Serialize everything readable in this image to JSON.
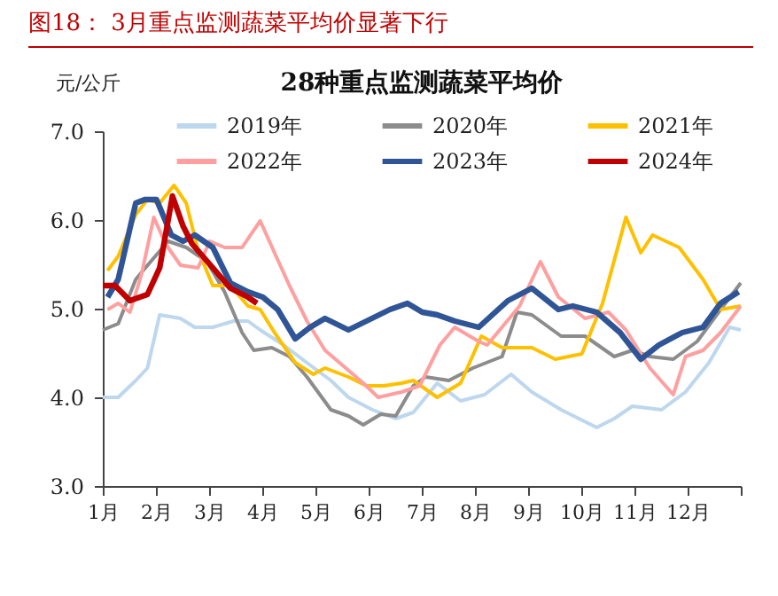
{
  "chart_data": {
    "type": "line",
    "title": "图18： 3月重点监测蔬菜平均价显著下行",
    "subtitle": "28种重点监测蔬菜平均价",
    "ylabel": "元/公斤",
    "xlim": [
      1,
      13
    ],
    "xticks": [
      {
        "value": 1,
        "label": "1月"
      },
      {
        "value": 2,
        "label": "2月"
      },
      {
        "value": 3,
        "label": "3月"
      },
      {
        "value": 4,
        "label": "4月"
      },
      {
        "value": 5,
        "label": "5月"
      },
      {
        "value": 6,
        "label": "6月"
      },
      {
        "value": 7,
        "label": "7月"
      },
      {
        "value": 8,
        "label": "8月"
      },
      {
        "value": 9,
        "label": "9月"
      },
      {
        "value": 10,
        "label": "10月"
      },
      {
        "value": 11,
        "label": "11月"
      },
      {
        "value": 12,
        "label": "12月"
      },
      {
        "value": 13,
        "label": null
      }
    ],
    "ylim": [
      3,
      7
    ],
    "yticks": [
      {
        "value": 3,
        "label": "3.0"
      },
      {
        "value": 4,
        "label": "4.0"
      },
      {
        "value": 5,
        "label": "5.0"
      },
      {
        "value": 6,
        "label": "6.0"
      },
      {
        "value": 7,
        "label": "7.0"
      }
    ],
    "grid": false,
    "legend": "top",
    "line_style": "solid",
    "series": [
      {
        "name": "2019年",
        "color": "#bdd7ee",
        "x": [
          1.0,
          1.29,
          1.62,
          1.84,
          2.07,
          2.46,
          2.73,
          3.07,
          3.46,
          3.73,
          3.96,
          4.4,
          4.84,
          5.29,
          5.62,
          6.07,
          6.51,
          6.84,
          7.29,
          7.73,
          8.18,
          8.68,
          9.07,
          9.62,
          10.29,
          10.62,
          10.96,
          11.51,
          11.96,
          12.4,
          12.79,
          13.0
        ],
        "values": [
          4.0,
          4.0,
          4.19,
          4.33,
          4.93,
          4.89,
          4.79,
          4.79,
          4.86,
          4.86,
          4.76,
          4.59,
          4.39,
          4.19,
          4.0,
          3.86,
          3.76,
          3.83,
          4.16,
          3.96,
          4.03,
          4.26,
          4.06,
          3.86,
          3.66,
          3.76,
          3.9,
          3.86,
          4.06,
          4.39,
          4.79,
          4.76
        ]
      },
      {
        "name": "2020年",
        "color": "#8c8c8c",
        "x": [
          1.0,
          1.29,
          1.62,
          1.9,
          2.23,
          2.57,
          2.96,
          3.29,
          3.62,
          3.84,
          4.18,
          4.51,
          4.84,
          5.29,
          5.62,
          5.9,
          6.23,
          6.51,
          6.84,
          7.07,
          7.51,
          7.96,
          8.51,
          8.79,
          9.07,
          9.62,
          10.07,
          10.62,
          10.96,
          11.29,
          11.73,
          12.18,
          12.62,
          13.0
        ],
        "values": [
          4.76,
          4.83,
          5.33,
          5.53,
          5.76,
          5.69,
          5.53,
          5.19,
          4.73,
          4.53,
          4.56,
          4.46,
          4.23,
          3.86,
          3.79,
          3.69,
          3.81,
          3.79,
          4.13,
          4.23,
          4.19,
          4.33,
          4.46,
          4.96,
          4.93,
          4.69,
          4.69,
          4.46,
          4.53,
          4.46,
          4.43,
          4.63,
          4.99,
          5.29
        ]
      },
      {
        "name": "2021年",
        "color": "#ffc000",
        "x": [
          1.09,
          1.29,
          1.62,
          1.84,
          2.07,
          2.34,
          2.57,
          2.79,
          3.07,
          3.4,
          3.73,
          3.96,
          4.23,
          4.62,
          4.96,
          5.18,
          5.62,
          5.96,
          6.29,
          6.62,
          6.84,
          7.29,
          7.73,
          8.12,
          8.51,
          9.07,
          9.51,
          10.01,
          10.4,
          10.84,
          11.12,
          11.34,
          11.84,
          12.29,
          12.62,
          13.0
        ],
        "values": [
          5.43,
          5.59,
          6.06,
          6.23,
          6.19,
          6.39,
          6.19,
          5.66,
          5.26,
          5.26,
          5.03,
          4.99,
          4.73,
          4.39,
          4.26,
          4.33,
          4.23,
          4.13,
          4.13,
          4.16,
          4.19,
          4.0,
          4.16,
          4.69,
          4.56,
          4.56,
          4.43,
          4.49,
          5.06,
          6.03,
          5.63,
          5.83,
          5.69,
          5.33,
          4.99,
          5.03
        ]
      },
      {
        "name": "2022年",
        "color": "#ff9f9f",
        "x": [
          1.09,
          1.29,
          1.51,
          1.73,
          1.96,
          2.18,
          2.46,
          2.79,
          3.01,
          3.29,
          3.62,
          3.96,
          4.23,
          4.51,
          4.84,
          5.18,
          5.57,
          5.9,
          6.18,
          6.62,
          6.96,
          7.34,
          7.62,
          8.07,
          8.23,
          8.84,
          9.23,
          9.57,
          10.07,
          10.51,
          10.84,
          11.29,
          11.73,
          11.96,
          12.29,
          12.62,
          13.0
        ],
        "values": [
          4.99,
          5.06,
          4.96,
          5.39,
          6.03,
          5.73,
          5.49,
          5.46,
          5.76,
          5.69,
          5.69,
          5.99,
          5.63,
          5.26,
          4.86,
          4.53,
          4.33,
          4.16,
          4.0,
          4.06,
          4.13,
          4.59,
          4.79,
          4.63,
          4.59,
          5.03,
          5.53,
          5.13,
          4.89,
          4.96,
          4.76,
          4.33,
          4.03,
          4.46,
          4.53,
          4.73,
          5.03
        ]
      },
      {
        "name": "2023年",
        "color": "#2f5597",
        "x": [
          1.09,
          1.29,
          1.62,
          1.79,
          2.01,
          2.29,
          2.51,
          2.73,
          3.07,
          3.4,
          3.73,
          4.01,
          4.29,
          4.62,
          4.9,
          5.18,
          5.62,
          5.96,
          6.4,
          6.73,
          7.01,
          7.29,
          7.62,
          8.07,
          8.62,
          9.07,
          9.57,
          9.84,
          10.29,
          10.73,
          11.12,
          11.46,
          11.9,
          12.29,
          12.62,
          12.96
        ],
        "values": [
          5.13,
          5.33,
          6.19,
          6.23,
          6.23,
          5.83,
          5.76,
          5.83,
          5.69,
          5.29,
          5.19,
          5.13,
          4.99,
          4.66,
          4.79,
          4.89,
          4.76,
          4.86,
          4.99,
          5.06,
          4.96,
          4.93,
          4.86,
          4.79,
          5.09,
          5.23,
          4.99,
          5.03,
          4.96,
          4.73,
          4.43,
          4.59,
          4.73,
          4.79,
          5.06,
          5.19
        ]
      },
      {
        "name": "2024年",
        "color": "#c00000",
        "x": [
          1.0,
          1.23,
          1.51,
          1.84,
          2.07,
          2.31,
          2.51,
          2.68,
          3.07,
          3.4,
          3.73,
          3.9
        ],
        "values": [
          5.26,
          5.26,
          5.09,
          5.16,
          5.46,
          6.27,
          5.93,
          5.73,
          5.46,
          5.23,
          5.13,
          5.06
        ]
      }
    ]
  }
}
